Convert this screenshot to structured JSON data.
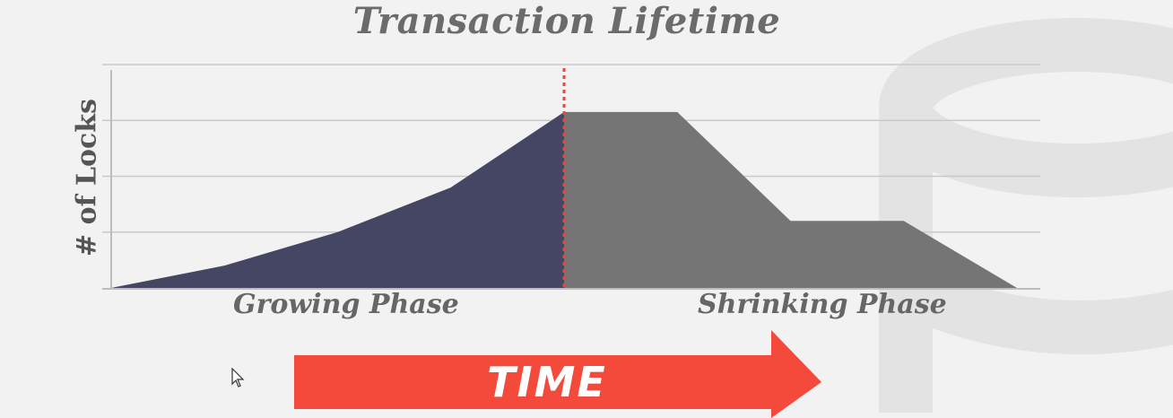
{
  "title": "Transaction Lifetime",
  "colors": {
    "growing": "#454664",
    "shrinking": "#757575",
    "divider": "#e8453c",
    "arrow": "#f44a3c",
    "grid": "#c9c9c9",
    "background": "#f2f2f2"
  },
  "arrow_label": "TIME",
  "chart_data": {
    "type": "area",
    "title": "",
    "ylabel": "# of Locks",
    "xlabel": "",
    "grid": true,
    "ylim": [
      0,
      4
    ],
    "xlim": [
      0,
      8
    ],
    "divider_x": 4,
    "series": [
      {
        "name": "Growing Phase",
        "x": [
          0,
          1,
          2,
          3,
          4
        ],
        "y": [
          0,
          0.4,
          1,
          1.8,
          3.15
        ]
      },
      {
        "name": "Shrinking Phase",
        "x": [
          4,
          5,
          6,
          7,
          8
        ],
        "y": [
          3.15,
          3.15,
          1.2,
          1.2,
          0
        ]
      }
    ],
    "phase_labels": [
      "Growing Phase",
      "Shrinking Phase"
    ]
  }
}
